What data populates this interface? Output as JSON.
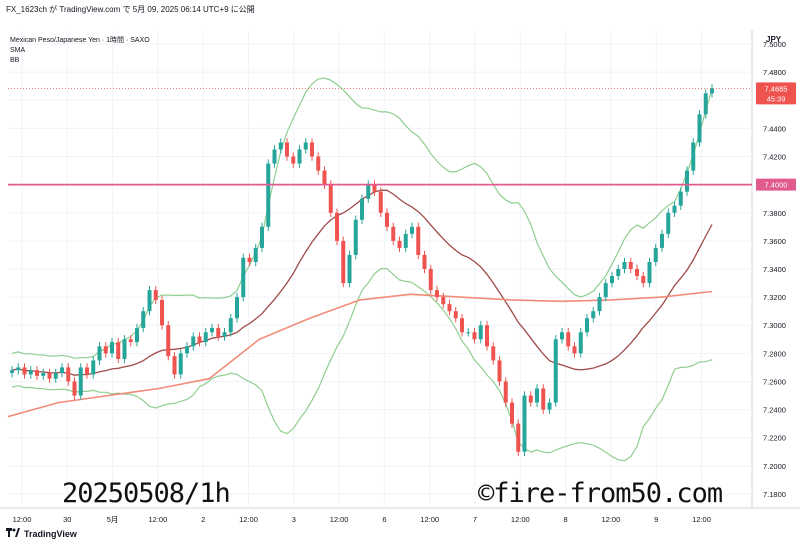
{
  "header": {
    "text": "FX_1623ch が TradingView.com で 5月 09, 2025 06:14 UTC+9 に公開"
  },
  "legend": {
    "symbol": "Mexican Peso/Japanese Yen · 1時間 · SAXO",
    "line2": "SMA",
    "line3": "BB"
  },
  "footer": {
    "brand": "TradingView",
    "logo_icon": "tradingview-logo-icon"
  },
  "watermark": {
    "date": "20250508/1h",
    "site": "©fire-from50.com"
  },
  "colors": {
    "up": "#26a69a",
    "down": "#ef5350",
    "bb": "#8fce8f",
    "sma_fast": "#a04a4a",
    "sma_slow": "#f28b78",
    "hline": "#e05a8e",
    "price_tag": "#ef5350",
    "grid": "#f0f3fa"
  },
  "chart_data": {
    "type": "candlestick",
    "currency_label": "JPY",
    "ylim": [
      7.17,
      7.51
    ],
    "y_ticks": [
      "7.5000",
      "7.4800",
      "7.4600",
      "7.4400",
      "7.4200",
      "7.4000",
      "7.3800",
      "7.3600",
      "7.3400",
      "7.3200",
      "7.3000",
      "7.2800",
      "7.2600",
      "7.2400",
      "7.2200",
      "7.2000",
      "7.1800"
    ],
    "x_ticks": [
      "12:00",
      "30",
      "5月",
      "12:00",
      "2",
      "12:00",
      "3",
      "12:00",
      "6",
      "12:00",
      "7",
      "12:00",
      "8",
      "12:00",
      "9",
      "12:00"
    ],
    "current_price": {
      "label": "7.4685",
      "value": 7.4685,
      "countdown": "45:39"
    },
    "horizontal_line": {
      "label": "7.4000",
      "value": 7.4
    },
    "candle_closes": [
      7.268,
      7.27,
      7.265,
      7.268,
      7.264,
      7.266,
      7.262,
      7.266,
      7.27,
      7.26,
      7.25,
      7.27,
      7.265,
      7.275,
      7.285,
      7.28,
      7.288,
      7.276,
      7.29,
      7.288,
      7.298,
      7.31,
      7.325,
      7.318,
      7.3,
      7.278,
      7.265,
      7.28,
      7.285,
      7.292,
      7.288,
      7.295,
      7.298,
      7.292,
      7.295,
      7.305,
      7.32,
      7.348,
      7.345,
      7.355,
      7.37,
      7.415,
      7.425,
      7.43,
      7.42,
      7.415,
      7.425,
      7.43,
      7.42,
      7.41,
      7.4,
      7.38,
      7.36,
      7.33,
      7.35,
      7.375,
      7.39,
      7.4,
      7.395,
      7.38,
      7.37,
      7.36,
      7.355,
      7.365,
      7.37,
      7.35,
      7.34,
      7.325,
      7.32,
      7.315,
      7.31,
      7.305,
      7.295,
      7.295,
      7.29,
      7.3,
      7.285,
      7.275,
      7.26,
      7.245,
      7.23,
      7.21,
      7.25,
      7.245,
      7.255,
      7.24,
      7.245,
      7.29,
      7.295,
      7.285,
      7.28,
      7.295,
      7.305,
      7.31,
      7.32,
      7.33,
      7.335,
      7.34,
      7.345,
      7.34,
      7.335,
      7.33,
      7.345,
      7.355,
      7.365,
      7.38,
      7.385,
      7.395,
      7.41,
      7.43,
      7.45,
      7.465,
      7.4685
    ],
    "series": [
      {
        "name": "BB",
        "role": "bands"
      },
      {
        "name": "SMA",
        "role": "fast"
      },
      {
        "name": "SMA",
        "role": "slow",
        "values_at_ticks": [
          7.235,
          7.245,
          7.25,
          7.255,
          7.262,
          7.29,
          7.305,
          7.318,
          7.322,
          7.32,
          7.318,
          7.317,
          7.318,
          7.32,
          7.324
        ]
      }
    ]
  }
}
